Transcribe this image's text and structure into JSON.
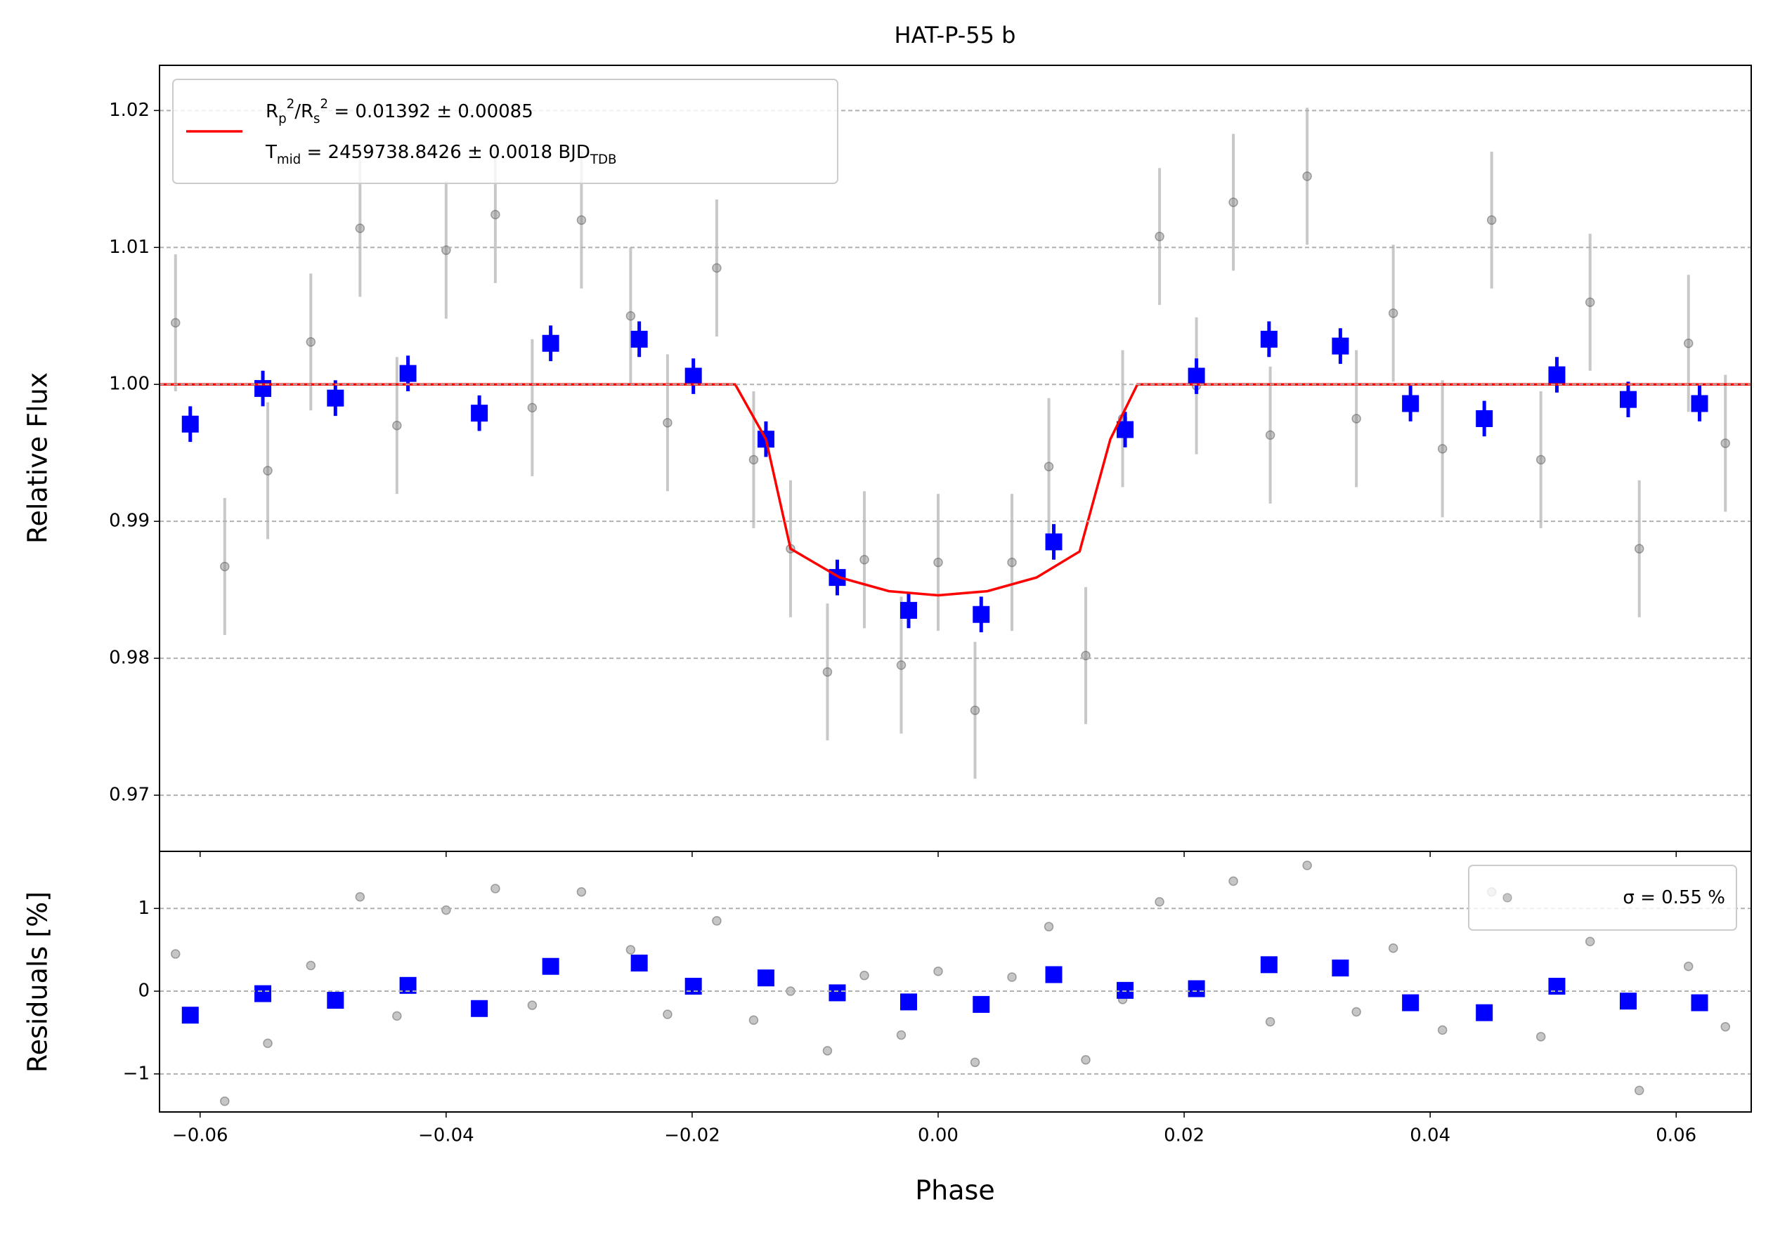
{
  "chart_data": [
    {
      "type": "scatter",
      "title": "HAT-P-55 b",
      "ylabel": "Relative Flux",
      "xlim": [
        -0.0633,
        0.0661
      ],
      "ylim": [
        0.9659,
        1.0233
      ],
      "yticks": [
        {
          "value": 0.97,
          "label": "0.97"
        },
        {
          "value": 0.98,
          "label": "0.98"
        },
        {
          "value": 0.99,
          "label": "0.99"
        },
        {
          "value": 1,
          "label": "1.00"
        },
        {
          "value": 1.01,
          "label": "1.01"
        },
        {
          "value": 1.02,
          "label": "1.02"
        }
      ],
      "grid": true,
      "legend": "upper left",
      "series": [
        {
          "style": "points",
          "color": "#808080",
          "x": [
            -0.062,
            -0.058,
            -0.0545,
            -0.051,
            -0.047,
            -0.044,
            -0.04,
            -0.036,
            -0.033,
            -0.029,
            -0.025,
            -0.022,
            -0.018,
            -0.015,
            -0.012,
            -0.009,
            -0.006,
            -0.003,
            0.0,
            0.003,
            0.006,
            0.009,
            0.012,
            0.015,
            0.018,
            0.021,
            0.024,
            0.027,
            0.03,
            0.034,
            0.037,
            0.041,
            0.045,
            0.049,
            0.053,
            0.057,
            0.061,
            0.064
          ],
          "values": [
            1.0045,
            0.9867,
            0.9937,
            1.0031,
            1.0114,
            0.997,
            1.0098,
            1.0124,
            0.9983,
            1.012,
            1.005,
            0.9972,
            1.0085,
            0.9945,
            0.988,
            0.979,
            0.9872,
            0.9795,
            0.987,
            0.9762,
            0.987,
            0.994,
            0.9802,
            0.9975,
            1.0108,
            0.9999,
            1.0133,
            0.9963,
            1.0152,
            0.9975,
            1.0052,
            0.9953,
            1.012,
            0.9945,
            1.006,
            0.988,
            1.003,
            0.9957
          ],
          "errors": [
            0.005,
            0.005,
            0.005,
            0.005,
            0.005,
            0.005,
            0.005,
            0.005,
            0.005,
            0.005,
            0.005,
            0.005,
            0.005,
            0.005,
            0.005,
            0.005,
            0.005,
            0.005,
            0.005,
            0.005,
            0.005,
            0.005,
            0.005,
            0.005,
            0.005,
            0.005,
            0.005,
            0.005,
            0.005,
            0.005,
            0.005,
            0.005,
            0.005,
            0.005,
            0.005,
            0.005,
            0.005,
            0.005
          ]
        },
        {
          "style": "squares",
          "color": "#0000ff",
          "x": [
            -0.0608,
            -0.0549,
            -0.049,
            -0.0431,
            -0.0373,
            -0.0315,
            -0.0243,
            -0.0199,
            -0.014,
            -0.0082,
            -0.0024,
            0.0035,
            0.0094,
            0.0152,
            0.021,
            0.0269,
            0.0327,
            0.0384,
            0.0444,
            0.0503,
            0.0561,
            0.0619
          ],
          "values": [
            0.9971,
            0.9997,
            0.999,
            1.0008,
            0.9979,
            1.003,
            1.0033,
            1.0006,
            0.996,
            0.9859,
            0.9835,
            0.9832,
            0.9885,
            0.9967,
            1.0006,
            1.0033,
            1.0028,
            0.9986,
            0.9975,
            1.0007,
            0.9989,
            0.9986
          ],
          "errors": [
            0.0013,
            0.0013,
            0.0013,
            0.0013,
            0.0013,
            0.0013,
            0.0013,
            0.0013,
            0.0013,
            0.0013,
            0.0013,
            0.0013,
            0.0013,
            0.0013,
            0.0013,
            0.0013,
            0.0013,
            0.0013,
            0.0013,
            0.0013,
            0.0013,
            0.0013
          ]
        },
        {
          "style": "line",
          "color": "#ff0000",
          "name": [
            "R_p^2/R_s^2 = 0.01392 ± 0.00085",
            "T_mid = 2459738.8426 ± 0.0018 BJD_TDB"
          ],
          "x": [
            -0.0633,
            -0.0165,
            -0.014,
            -0.012,
            -0.008,
            -0.004,
            0,
            0.004,
            0.008,
            0.0115,
            0.014,
            0.0162,
            0.0661
          ],
          "values": [
            1,
            1,
            0.996,
            0.988,
            0.9859,
            0.9849,
            0.9846,
            0.9849,
            0.9859,
            0.9878,
            0.996,
            1,
            1
          ]
        }
      ]
    },
    {
      "type": "scatter",
      "xlabel": "Phase",
      "ylabel": "Residuals [%]",
      "xlim": [
        -0.0633,
        0.0661
      ],
      "ylim": [
        -1.46,
        1.69
      ],
      "xticks": [
        {
          "value": -0.06,
          "label": "−0.06"
        },
        {
          "value": -0.04,
          "label": "−0.04"
        },
        {
          "value": -0.02,
          "label": "−0.02"
        },
        {
          "value": 0,
          "label": "0.00"
        },
        {
          "value": 0.02,
          "label": "0.02"
        },
        {
          "value": 0.04,
          "label": "0.04"
        },
        {
          "value": 0.06,
          "label": "0.06"
        }
      ],
      "yticks": [
        {
          "value": -1,
          "label": "−1"
        },
        0,
        1
      ],
      "grid": true,
      "legend": "upper right",
      "series": [
        {
          "style": "points",
          "color": "#808080",
          "name": "σ = 0.55 %",
          "x": [
            -0.062,
            -0.058,
            -0.0545,
            -0.051,
            -0.047,
            -0.044,
            -0.04,
            -0.036,
            -0.033,
            -0.029,
            -0.025,
            -0.022,
            -0.018,
            -0.015,
            -0.012,
            -0.009,
            -0.006,
            -0.003,
            0.0,
            0.003,
            0.006,
            0.009,
            0.012,
            0.015,
            0.018,
            0.021,
            0.024,
            0.027,
            0.03,
            0.034,
            0.037,
            0.041,
            0.045,
            0.049,
            0.053,
            0.057,
            0.061,
            0.064
          ],
          "values": [
            0.45,
            -1.33,
            -0.63,
            0.31,
            1.14,
            -0.3,
            0.98,
            1.24,
            -0.17,
            1.2,
            0.5,
            -0.28,
            0.85,
            -0.35,
            0.0,
            -0.72,
            0.19,
            -0.53,
            0.24,
            -0.86,
            0.17,
            0.78,
            -0.83,
            -0.1,
            1.08,
            -0.01,
            1.33,
            -0.37,
            1.52,
            -0.25,
            0.52,
            -0.47,
            1.2,
            -0.55,
            0.6,
            -1.2,
            0.3,
            -0.43
          ]
        },
        {
          "style": "squares",
          "color": "#0000ff",
          "x": [
            -0.0608,
            -0.0549,
            -0.049,
            -0.0431,
            -0.0373,
            -0.0315,
            -0.0243,
            -0.0199,
            -0.014,
            -0.0082,
            -0.0024,
            0.0035,
            0.0094,
            0.0152,
            0.021,
            0.0269,
            0.0327,
            0.0384,
            0.0444,
            0.0503,
            0.0561,
            0.0619
          ],
          "values": [
            -0.29,
            -0.03,
            -0.11,
            0.07,
            -0.21,
            0.3,
            0.34,
            0.06,
            0.16,
            -0.02,
            -0.13,
            -0.16,
            0.2,
            0.01,
            0.03,
            0.32,
            0.28,
            -0.14,
            -0.26,
            0.06,
            -0.12,
            -0.14
          ]
        }
      ]
    }
  ]
}
